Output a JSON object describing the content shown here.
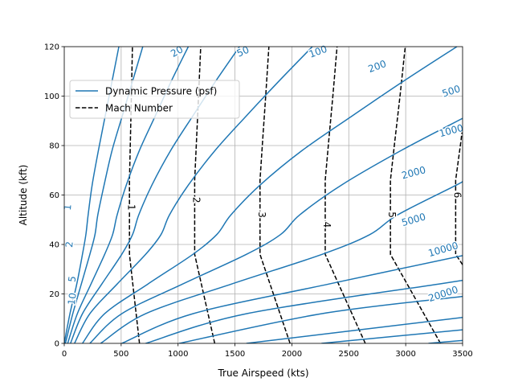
{
  "chart_data": {
    "type": "line",
    "xlabel": "True Airspeed (kts)",
    "ylabel": "Altitude (kft)",
    "xlim": [
      0,
      3500
    ],
    "ylim": [
      0,
      120
    ],
    "xticks": [
      0,
      500,
      1000,
      1500,
      2000,
      2500,
      3000,
      3500
    ],
    "yticks": [
      0,
      20,
      40,
      60,
      80,
      100,
      120
    ],
    "grid": true,
    "legend_position": "upper-left",
    "colors": {
      "dynamic_pressure": "#1f77b4",
      "mach": "#000000",
      "grid": "#b0b0b0"
    },
    "legend": [
      {
        "label": "Dynamic Pressure (psf)",
        "style": "solid",
        "color": "#1f77b4"
      },
      {
        "label": "Mach Number",
        "style": "dashed",
        "color": "#000000"
      }
    ],
    "dynamic_pressure_contours": [
      {
        "level": "1",
        "points": [
          [
            0,
            0
          ],
          [
            50,
            12
          ],
          [
            110,
            24
          ],
          [
            160,
            36
          ],
          [
            190,
            44
          ],
          [
            210,
            52
          ],
          [
            245,
            64
          ],
          [
            300,
            78
          ],
          [
            360,
            92
          ],
          [
            420,
            106
          ],
          [
            480,
            120
          ]
        ]
      },
      {
        "level": "2",
        "points": [
          [
            10,
            0
          ],
          [
            75,
            12
          ],
          [
            150,
            24
          ],
          [
            225,
            36
          ],
          [
            270,
            44
          ],
          [
            295,
            52
          ],
          [
            350,
            64
          ],
          [
            420,
            78
          ],
          [
            510,
            92
          ],
          [
            600,
            106
          ],
          [
            690,
            120
          ]
        ]
      },
      {
        "level": "5",
        "points": [
          [
            30,
            0
          ],
          [
            115,
            12
          ],
          [
            235,
            24
          ],
          [
            355,
            36
          ],
          [
            425,
            44
          ],
          [
            465,
            52
          ],
          [
            545,
            64
          ],
          [
            660,
            78
          ],
          [
            800,
            92
          ],
          [
            940,
            106
          ],
          [
            1090,
            120
          ]
        ]
      },
      {
        "level": "10",
        "points": [
          [
            55,
            0
          ],
          [
            160,
            12
          ],
          [
            330,
            24
          ],
          [
            505,
            36
          ],
          [
            600,
            44
          ],
          [
            655,
            52
          ],
          [
            770,
            64
          ],
          [
            935,
            78
          ],
          [
            1130,
            92
          ],
          [
            1330,
            106
          ],
          [
            1540,
            120
          ]
        ]
      },
      {
        "level": "20",
        "points": [
          [
            90,
            0
          ],
          [
            225,
            12
          ],
          [
            465,
            24
          ],
          [
            715,
            36
          ],
          [
            850,
            44
          ],
          [
            925,
            52
          ],
          [
            1090,
            64
          ],
          [
            1325,
            78
          ],
          [
            1600,
            92
          ],
          [
            1885,
            106
          ],
          [
            2180,
            120
          ]
        ]
      },
      {
        "level": "50",
        "points": [
          [
            160,
            0
          ],
          [
            355,
            12
          ],
          [
            735,
            24
          ],
          [
            1130,
            36
          ],
          [
            1340,
            44
          ],
          [
            1465,
            52
          ],
          [
            1720,
            64
          ],
          [
            2090,
            78
          ],
          [
            2530,
            92
          ],
          [
            2980,
            106
          ],
          [
            3450,
            120
          ]
        ]
      },
      {
        "level": "100",
        "points": [
          [
            225,
            0
          ],
          [
            505,
            12
          ],
          [
            1040,
            24
          ],
          [
            1600,
            36
          ],
          [
            1900,
            44
          ],
          [
            2070,
            52
          ],
          [
            2435,
            64
          ],
          [
            2960,
            78
          ],
          [
            3500,
            91
          ]
        ]
      },
      {
        "level": "200",
        "points": [
          [
            320,
            0
          ],
          [
            715,
            12
          ],
          [
            1470,
            24
          ],
          [
            2265,
            36
          ],
          [
            2685,
            44
          ],
          [
            2930,
            52
          ],
          [
            3445,
            64
          ],
          [
            3500,
            65.5
          ]
        ]
      },
      {
        "level": "500",
        "points": [
          [
            505,
            0
          ],
          [
            1130,
            12
          ],
          [
            2325,
            24
          ],
          [
            3500,
            35.5
          ]
        ]
      },
      {
        "level": "1000",
        "points": [
          [
            715,
            0
          ],
          [
            1600,
            12
          ],
          [
            3290,
            24
          ],
          [
            3500,
            25.5
          ]
        ]
      },
      {
        "level": "2000",
        "points": [
          [
            1010,
            0
          ],
          [
            2260,
            12
          ],
          [
            3500,
            19
          ]
        ]
      },
      {
        "level": "5000",
        "points": [
          [
            1600,
            0
          ],
          [
            3500,
            10.5
          ]
        ]
      },
      {
        "level": "10000",
        "points": [
          [
            2260,
            0
          ],
          [
            3500,
            5.5
          ]
        ]
      },
      {
        "level": "20000",
        "points": [
          [
            3200,
            0
          ],
          [
            3500,
            1.2
          ]
        ]
      }
    ],
    "contour_labels": [
      {
        "text": "1",
        "x": 30,
        "y": 55,
        "rotation": -85
      },
      {
        "text": "2",
        "x": 45,
        "y": 40,
        "rotation": -85
      },
      {
        "text": "5",
        "x": 70,
        "y": 26,
        "rotation": -84
      },
      {
        "text": "10",
        "x": 70,
        "y": 18,
        "rotation": -82
      },
      {
        "text": "20",
        "x": 990,
        "y": 118,
        "rotation": -30
      },
      {
        "text": "50",
        "x": 1570,
        "y": 118,
        "rotation": -24
      },
      {
        "text": "100",
        "x": 2230,
        "y": 118,
        "rotation": -20
      },
      {
        "text": "200",
        "x": 2750,
        "y": 112,
        "rotation": -20
      },
      {
        "text": "500",
        "x": 3400,
        "y": 102,
        "rotation": -18
      },
      {
        "text": "1000",
        "x": 3400,
        "y": 86,
        "rotation": -15
      },
      {
        "text": "2000",
        "x": 3070,
        "y": 69,
        "rotation": -15
      },
      {
        "text": "5000",
        "x": 3070,
        "y": 50,
        "rotation": -16
      },
      {
        "text": "10000",
        "x": 3330,
        "y": 38,
        "rotation": -16
      },
      {
        "text": "20000",
        "x": 3330,
        "y": 20,
        "rotation": -18
      }
    ],
    "mach_lines": [
      {
        "mach": "1",
        "points": [
          [
            661,
            0
          ],
          [
            573,
            36
          ],
          [
            573,
            66
          ],
          [
            581,
            82
          ],
          [
            590,
            100
          ],
          [
            599,
            120
          ]
        ]
      },
      {
        "mach": "2",
        "points": [
          [
            1322,
            0
          ],
          [
            1146,
            36
          ],
          [
            1146,
            66
          ],
          [
            1162,
            82
          ],
          [
            1180,
            100
          ],
          [
            1199,
            120
          ]
        ]
      },
      {
        "mach": "3",
        "points": [
          [
            1984,
            0
          ],
          [
            1720,
            36
          ],
          [
            1720,
            66
          ],
          [
            1743,
            82
          ],
          [
            1770,
            100
          ],
          [
            1798,
            120
          ]
        ]
      },
      {
        "mach": "4",
        "points": [
          [
            2645,
            0
          ],
          [
            2293,
            36
          ],
          [
            2293,
            66
          ],
          [
            2324,
            82
          ],
          [
            2360,
            100
          ],
          [
            2397,
            120
          ]
        ]
      },
      {
        "mach": "5",
        "points": [
          [
            3306,
            0
          ],
          [
            2866,
            36
          ],
          [
            2866,
            66
          ],
          [
            2905,
            82
          ],
          [
            2950,
            100
          ],
          [
            2996,
            120
          ]
        ]
      },
      {
        "mach": "6",
        "points": [
          [
            3500,
            31.8
          ],
          [
            3439,
            36
          ],
          [
            3439,
            66
          ],
          [
            3486,
            82
          ],
          [
            3500,
            88
          ]
        ]
      }
    ],
    "mach_labels": [
      {
        "text": "1",
        "x": 590,
        "y": 55,
        "rotation": 90
      },
      {
        "text": "2",
        "x": 1160,
        "y": 58,
        "rotation": 90
      },
      {
        "text": "3",
        "x": 1735,
        "y": 52,
        "rotation": 90
      },
      {
        "text": "4",
        "x": 2308,
        "y": 48,
        "rotation": 90
      },
      {
        "text": "5",
        "x": 2880,
        "y": 52,
        "rotation": 90
      },
      {
        "text": "6",
        "x": 3455,
        "y": 60,
        "rotation": 90
      }
    ]
  }
}
